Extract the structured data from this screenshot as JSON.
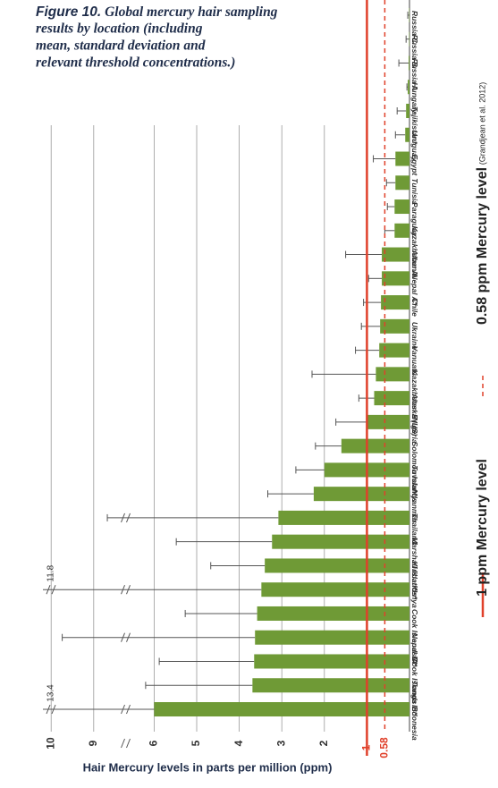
{
  "chart_data": {
    "type": "bar",
    "orientation": "horizontal",
    "figure_label": "Figure 10.",
    "title_lines": [
      "Global mercury hair sampling",
      "results by location (including",
      "mean, standard deviation and",
      "relevant threshold concentrations.)"
    ],
    "x_label": "Hair Mercury levels in parts per million (ppm)",
    "categories": [
      "Indonesia",
      "Tonga",
      "Cook Islands B*",
      "Nepal B*",
      "Cook Islands A*",
      "Kenya",
      "Kiribati*",
      "Marshall Islands*",
      "Thailand",
      "Myanmar",
      "Tuvalu*",
      "Solomon Islands",
      "Nigeria",
      "Alaska (US)",
      "Kazakhstan B",
      "Vanuatu",
      "Ukraine",
      "Chile",
      "Nepal A*",
      "Albania",
      "Kazakhstan A",
      "Paraguay",
      "Tunisia",
      "Egypt",
      "Uruguay",
      "Tajikistan*",
      "Hungary",
      "Russia A",
      "Russia B",
      "Russia C"
    ],
    "values": [
      6.0,
      3.69,
      3.65,
      3.63,
      3.58,
      3.48,
      3.4,
      3.23,
      3.08,
      2.25,
      2.0,
      1.6,
      1.02,
      0.83,
      0.79,
      0.71,
      0.69,
      0.67,
      0.65,
      0.65,
      0.35,
      0.35,
      0.33,
      0.33,
      0.1,
      0.08,
      0.04,
      0.02,
      0.01,
      0.01
    ],
    "error_ends": [
      13.4,
      6.2,
      5.88,
      9.74,
      5.27,
      11.8,
      4.67,
      5.48,
      8.68,
      3.33,
      2.67,
      2.21,
      1.73,
      1.19,
      2.29,
      1.27,
      1.13,
      1.08,
      0.96,
      1.5,
      0.58,
      0.52,
      0.54,
      0.85,
      0.33,
      0.29,
      0.06,
      0.25,
      0.08,
      0.04
    ],
    "error_end_labels": [
      "13.4",
      null,
      null,
      null,
      null,
      "11.8",
      null,
      null,
      null,
      null,
      null,
      null,
      null,
      null,
      null,
      null,
      null,
      null,
      null,
      null,
      null,
      null,
      null,
      null,
      null,
      null,
      null,
      null,
      null,
      null
    ],
    "color": "#6f9a36",
    "error_color": "#555555",
    "xlim": [
      0,
      10
    ],
    "xticks": [
      2,
      3,
      4,
      5,
      6,
      9,
      10
    ],
    "axis_break": [
      6.67,
      8.25
    ],
    "grid": true,
    "reference_lines": [
      {
        "value": 1,
        "label": "1",
        "legend": "1 ppm Mercury level",
        "style": "solid",
        "color": "#e0402a"
      },
      {
        "value": 0.58,
        "label": "0.58",
        "legend": "0.58 ppm Mercury level",
        "source": "(Grandjean et al. 2012)",
        "style": "dashed",
        "color": "#e0402a"
      }
    ]
  }
}
